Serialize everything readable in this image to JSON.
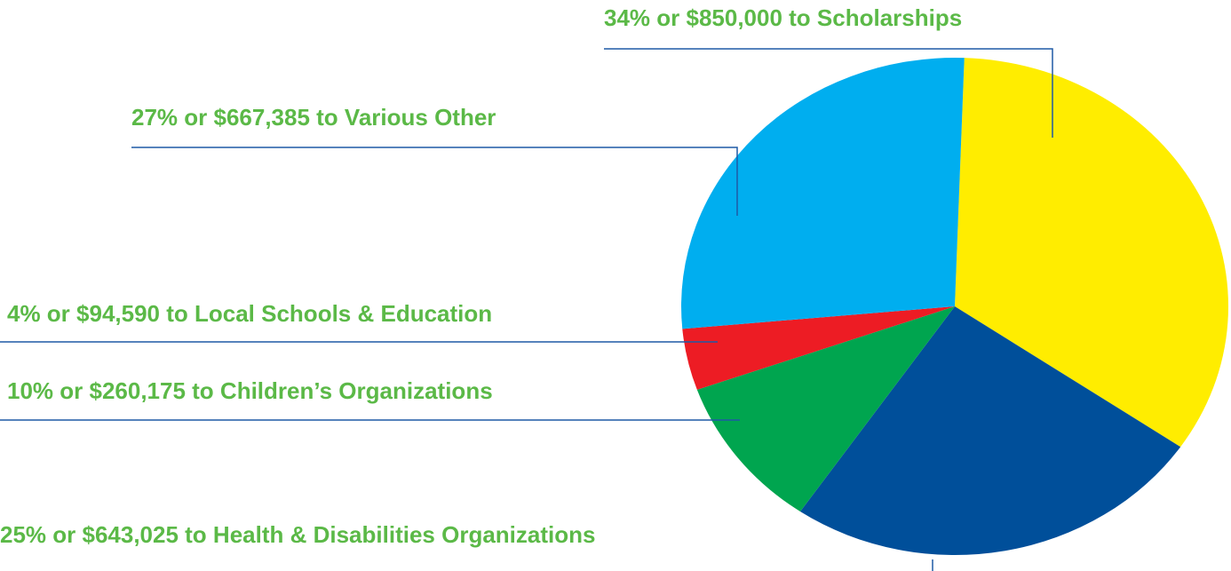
{
  "chart_data": {
    "type": "pie",
    "categories": [
      "Scholarships",
      "Health & Disabilities Organizations",
      "Children’s Organizations",
      "Local Schools & Education",
      "Various Other"
    ],
    "values": [
      34,
      25,
      10,
      4,
      27
    ],
    "value_labels": [
      "34% or $850,000 to Scholarships",
      "25% or $643,025 to Health & Disabilities Organizations",
      "10% or $260,175 to Children’s Organizations",
      "4% or $94,590 to Local Schools & Education",
      "27% or $667,385 to Various Other"
    ],
    "colors": [
      "#ffed00",
      "#004f9a",
      "#00a54f",
      "#ed1c24",
      "#00aeef"
    ]
  }
}
